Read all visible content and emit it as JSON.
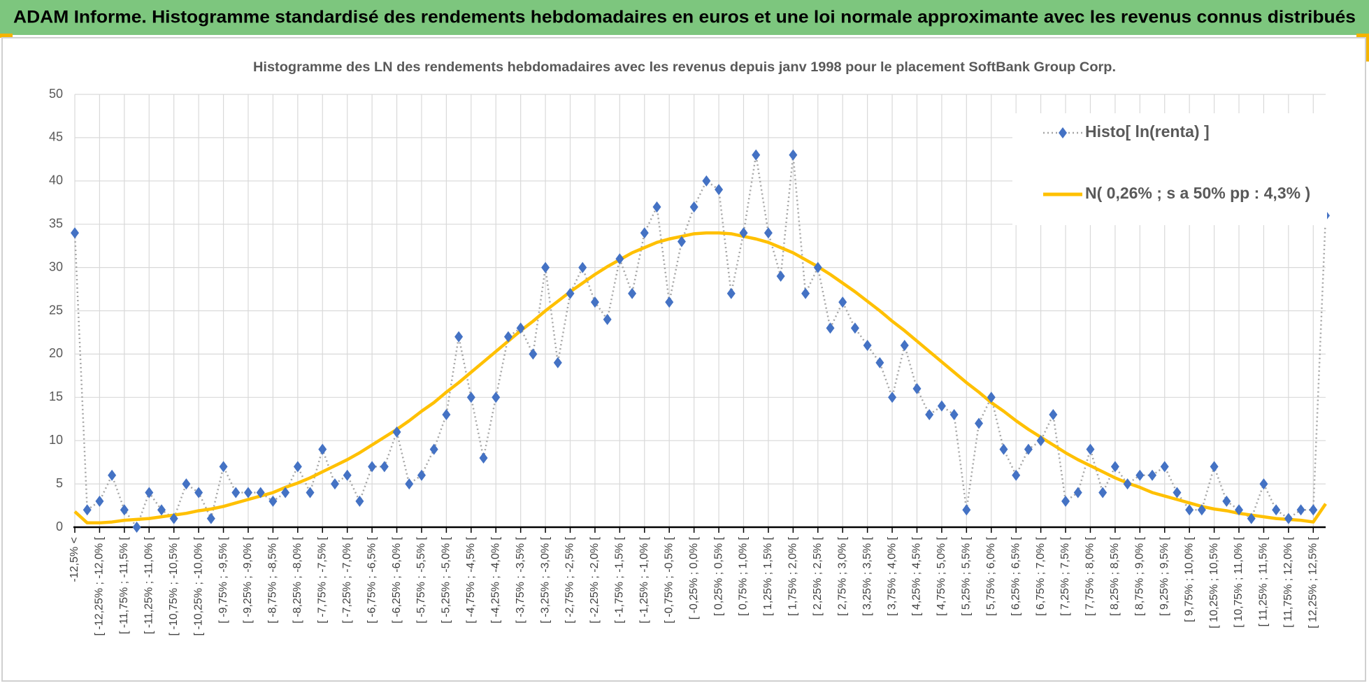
{
  "header": {
    "title": "ADAM Informe. Histogramme standardisé des rendements hebdomadaires en euros et une loi normale approximante avec les revenus connus distribués"
  },
  "chart_data": {
    "type": "line",
    "title": "Histogramme des LN des rendements hebdomadaires avec les revenus depuis janv 1998 pour le placement SoftBank Group Corp.",
    "categories": [
      "-12,5% <",
      null,
      "[ -12,25% ; -12,0% [",
      null,
      "[ -11,75% ; -11,5% [",
      null,
      "[ -11,25% ; -11,0% [",
      null,
      "[ -10,75% ; -10,5% [",
      null,
      "[ -10,25% ; -10,0% [",
      null,
      "[ -9,75% ; -9,5% [",
      null,
      "[ -9,25% ; -9,0% [",
      null,
      "[ -8,75% ; -8,5% [",
      null,
      "[ -8,25% ; -8,0% [",
      null,
      "[ -7,75% ; -7,5% [",
      null,
      "[ -7,25% ; -7,0% [",
      null,
      "[ -6,75% ; -6,5% [",
      null,
      "[ -6,25% ; -6,0% [",
      null,
      "[ -5,75% ; -5,5% [",
      null,
      "[ -5,25% ; -5,0% [",
      null,
      "[ -4,75% ; -4,5% [",
      null,
      "[ -4,25% ; -4,0% [",
      null,
      "[ -3,75% ; -3,5% [",
      null,
      "[ -3,25% ; -3,0% [",
      null,
      "[ -2,75% ; -2,5% [",
      null,
      "[ -2,25% ; -2,0% [",
      null,
      "[ -1,75% ; -1,5% [",
      null,
      "[ -1,25% ; -1,0% [",
      null,
      "[ -0,75% ; -0,5% [",
      null,
      "[ -0,25% ; 0,0% [",
      null,
      "[ 0,25% ; 0,5% [",
      null,
      "[ 0,75% ; 1,0% [",
      null,
      "[ 1,25% ; 1,5% [",
      null,
      "[ 1,75% ; 2,0% [",
      null,
      "[ 2,25% ; 2,5% [",
      null,
      "[ 2,75% ; 3,0% [",
      null,
      "[ 3,25% ; 3,5% [",
      null,
      "[ 3,75% ; 4,0% [",
      null,
      "[ 4,25% ; 4,5% [",
      null,
      "[ 4,75% ; 5,0% [",
      null,
      "[ 5,25% ; 5,5% [",
      null,
      "[ 5,75% ; 6,0% [",
      null,
      "[ 6,25% ; 6,5% [",
      null,
      "[ 6,75% ; 7,0% [",
      null,
      "[ 7,25% ; 7,5% [",
      null,
      "[ 7,75% ; 8,0% [",
      null,
      "[ 8,25% ; 8,5% [",
      null,
      "[ 8,75% ; 9,0% [",
      null,
      "[ 9,25% ; 9,5% [",
      null,
      "[ 9,75% ; 10,0% [",
      null,
      "[ 10,25% ; 10,5% [",
      null,
      "[ 10,75% ; 11,0% [",
      null,
      "[ 11,25% ; 11,5% [",
      null,
      "[ 11,75% ; 12,0% [",
      null,
      "[ 12,25% ; 12,5% [",
      null
    ],
    "series": [
      {
        "name": "Histo[ ln(renta) ]",
        "color": "#4472c4",
        "line_color": "#a6a6a6",
        "values": [
          34,
          2,
          3,
          6,
          2,
          0,
          4,
          2,
          1,
          5,
          4,
          1,
          7,
          4,
          4,
          4,
          3,
          4,
          7,
          4,
          9,
          5,
          6,
          3,
          7,
          7,
          11,
          5,
          6,
          9,
          13,
          22,
          15,
          8,
          15,
          22,
          23,
          20,
          30,
          19,
          27,
          30,
          26,
          24,
          31,
          27,
          34,
          37,
          26,
          33,
          37,
          40,
          39,
          27,
          34,
          43,
          34,
          29,
          43,
          27,
          30,
          23,
          26,
          23,
          21,
          19,
          15,
          21,
          16,
          13,
          14,
          13,
          2,
          12,
          15,
          9,
          6,
          9,
          10,
          13,
          3,
          4,
          9,
          4,
          7,
          5,
          6,
          6,
          7,
          4,
          2,
          2,
          7,
          3,
          2,
          1,
          5,
          2,
          1,
          2,
          2,
          36
        ]
      },
      {
        "name": "N( 0,26% ; s a 50% pp : 4,3% )",
        "color": "#ffc000",
        "values": [
          1.8,
          0.5,
          0.5,
          0.6,
          0.8,
          0.9,
          1.0,
          1.2,
          1.4,
          1.6,
          1.9,
          2.1,
          2.4,
          2.8,
          3.2,
          3.6,
          4.0,
          4.6,
          5.1,
          5.7,
          6.4,
          7.1,
          7.8,
          8.6,
          9.5,
          10.4,
          11.3,
          12.3,
          13.4,
          14.4,
          15.6,
          16.7,
          17.9,
          19.1,
          20.3,
          21.5,
          22.7,
          23.8,
          25.0,
          26.1,
          27.2,
          28.2,
          29.2,
          30.1,
          30.9,
          31.7,
          32.3,
          32.9,
          33.3,
          33.6,
          33.9,
          34.0,
          34.0,
          33.9,
          33.6,
          33.3,
          32.9,
          32.3,
          31.7,
          30.9,
          30.1,
          29.2,
          28.2,
          27.2,
          26.1,
          25.0,
          23.8,
          22.7,
          21.5,
          20.3,
          19.1,
          17.9,
          16.7,
          15.6,
          14.4,
          13.4,
          12.3,
          11.3,
          10.4,
          9.5,
          8.6,
          7.8,
          7.1,
          6.4,
          5.7,
          5.1,
          4.6,
          4.0,
          3.6,
          3.2,
          2.8,
          2.4,
          2.1,
          1.9,
          1.6,
          1.4,
          1.2,
          1.0,
          0.9,
          0.8,
          0.6,
          2.7
        ]
      }
    ],
    "ylim": [
      0,
      50
    ],
    "yticks": [
      0,
      5,
      10,
      15,
      20,
      25,
      30,
      35,
      40,
      45,
      50
    ],
    "grid": true,
    "legend": "top-right"
  }
}
